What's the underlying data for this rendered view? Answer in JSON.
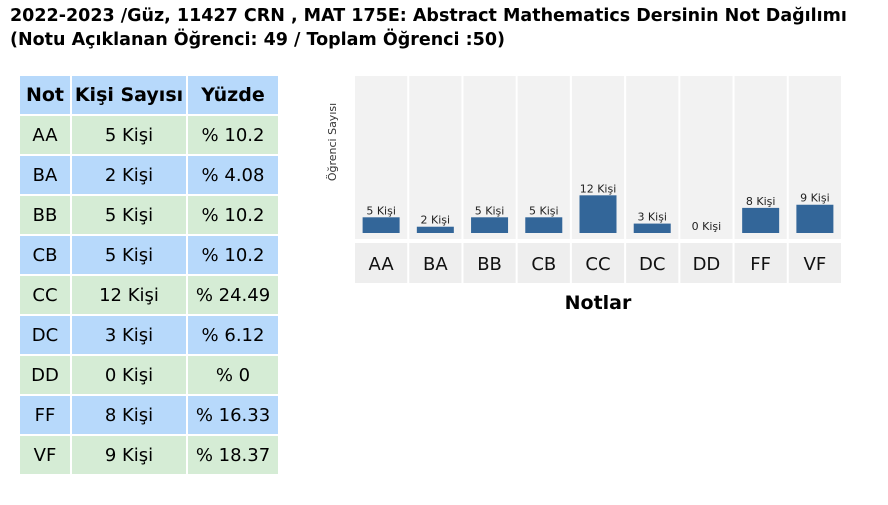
{
  "header": {
    "line1": "2022-2023 /Güz, 11427 CRN , MAT 175E: Abstract Mathematics Dersinin Not Dağılımı",
    "line2": "(Notu Açıklanan Öğrenci: 49 / Toplam Öğrenci :50)"
  },
  "table": {
    "headers": [
      "Not",
      "Kişi Sayısı",
      "Yüzde"
    ],
    "rows": [
      {
        "grade": "AA",
        "count": "5 Kişi",
        "percent": "% 10.2"
      },
      {
        "grade": "BA",
        "count": "2 Kişi",
        "percent": "% 4.08"
      },
      {
        "grade": "BB",
        "count": "5 Kişi",
        "percent": "% 10.2"
      },
      {
        "grade": "CB",
        "count": "5 Kişi",
        "percent": "% 10.2"
      },
      {
        "grade": "CC",
        "count": "12 Kişi",
        "percent": "% 24.49"
      },
      {
        "grade": "DC",
        "count": "3 Kişi",
        "percent": "% 6.12"
      },
      {
        "grade": "DD",
        "count": "0 Kişi",
        "percent": "% 0"
      },
      {
        "grade": "FF",
        "count": "8 Kişi",
        "percent": "% 16.33"
      },
      {
        "grade": "VF",
        "count": "9 Kişi",
        "percent": "% 18.37"
      }
    ]
  },
  "chart_data": {
    "type": "bar",
    "categories": [
      "AA",
      "BA",
      "BB",
      "CB",
      "CC",
      "DC",
      "DD",
      "FF",
      "VF"
    ],
    "values": [
      5,
      2,
      5,
      5,
      12,
      3,
      0,
      8,
      9
    ],
    "data_labels": [
      "5 Kişi",
      "2 Kişi",
      "5 Kişi",
      "5 Kişi",
      "12 Kişi",
      "3 Kişi",
      "0 Kişi",
      "8 Kişi",
      "9 Kişi"
    ],
    "xlabel": "Notlar",
    "ylabel": "Öğrenci Sayısı",
    "ylim": [
      0,
      50
    ],
    "grid": false,
    "legend": "none",
    "bar_color": "#336699",
    "plot_background": "#f2f2f2"
  },
  "colors": {
    "header_cell": "#b7d9fb",
    "row_green": "#d5ecd5",
    "row_blue": "#b7d9fb"
  }
}
